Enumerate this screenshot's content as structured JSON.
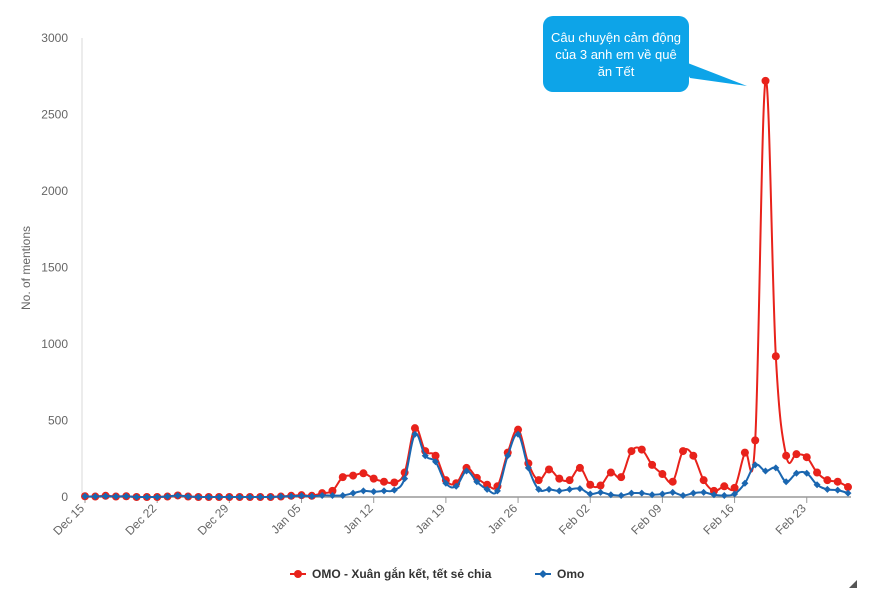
{
  "chart_data": {
    "type": "line",
    "ylabel": "No. of mentions",
    "xlabel": "",
    "ylim": [
      0,
      3000
    ],
    "yticks": [
      0,
      500,
      1000,
      1500,
      2000,
      2500,
      3000
    ],
    "ytick_labels": [
      "0",
      "500",
      "1000",
      "1500",
      "2000",
      "2500",
      "3000"
    ],
    "xtick_labels": [
      "Dec 15",
      "Dec 22",
      "Dec 29",
      "Jan 05",
      "Jan 12",
      "Jan 19",
      "Jan 26",
      "Feb 02",
      "Feb 09",
      "Feb 16",
      "Feb 23"
    ],
    "x_start": "Dec 15",
    "grid": false,
    "legend_position": "bottom",
    "series": [
      {
        "name": "OMO - Xuân gắn kết, tết sẻ chia",
        "color": "#e8221b",
        "values": [
          5,
          3,
          8,
          3,
          5,
          0,
          0,
          0,
          3,
          10,
          3,
          0,
          0,
          0,
          0,
          0,
          0,
          0,
          0,
          3,
          8,
          12,
          8,
          25,
          40,
          130,
          140,
          155,
          120,
          100,
          95,
          160,
          450,
          300,
          270,
          110,
          90,
          190,
          125,
          80,
          70,
          290,
          440,
          220,
          110,
          180,
          120,
          110,
          190,
          80,
          75,
          160,
          130,
          300,
          310,
          210,
          150,
          100,
          300,
          270,
          110,
          40,
          70,
          60,
          290,
          370,
          2720,
          920,
          270,
          280,
          260,
          160,
          110,
          100,
          65
        ]
      },
      {
        "name": "Omo",
        "color": "#1a66b0",
        "values": [
          5,
          3,
          6,
          3,
          5,
          0,
          0,
          0,
          3,
          10,
          3,
          0,
          0,
          0,
          0,
          0,
          0,
          0,
          0,
          3,
          5,
          8,
          5,
          10,
          10,
          10,
          25,
          40,
          35,
          40,
          45,
          120,
          410,
          270,
          230,
          90,
          70,
          170,
          100,
          50,
          40,
          270,
          410,
          190,
          50,
          50,
          40,
          50,
          55,
          20,
          30,
          15,
          10,
          25,
          25,
          15,
          20,
          30,
          10,
          25,
          30,
          15,
          10,
          20,
          90,
          210,
          170,
          190,
          100,
          155,
          155,
          80,
          50,
          45,
          25
        ]
      }
    ],
    "annotations": [
      {
        "text": "Câu chuyện cảm động của 3 anh em về quê ăn Tết",
        "target_index": 66
      }
    ]
  },
  "callout": {
    "text": "Câu chuyện cảm động của 3 anh em về quê ăn Tết",
    "color": "#0da4e8"
  }
}
